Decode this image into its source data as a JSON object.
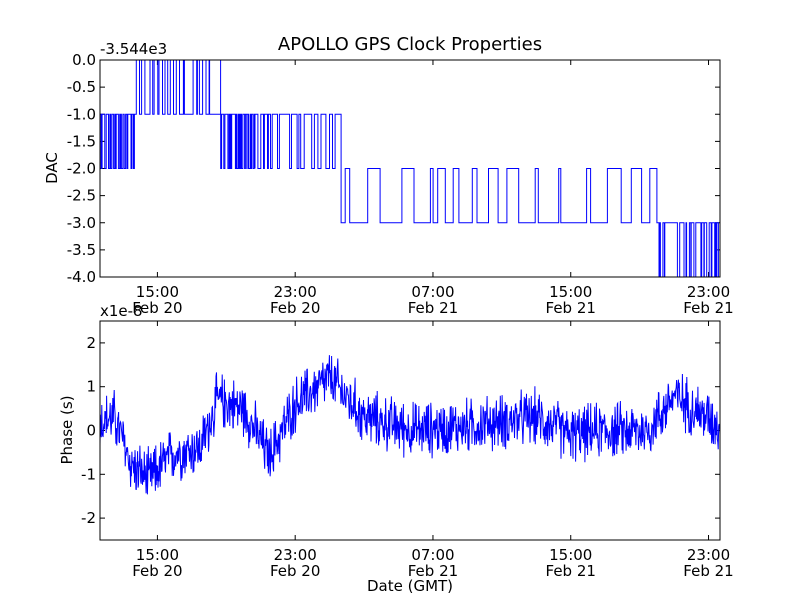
{
  "chart_data": [
    {
      "type": "line",
      "title": "APOLLO GPS Clock Properties",
      "offset_label": "-3.544e3",
      "ylabel": "DAC",
      "xlabel": "",
      "ylim": [
        -4.0,
        0.0
      ],
      "xlim": [
        "2009-02-20 11:40",
        "2009-02-21 23:40"
      ],
      "yticks": [
        "0.0",
        "-0.5",
        "-1.0",
        "-1.5",
        "-2.0",
        "-2.5",
        "-3.0",
        "-3.5",
        "-4.0"
      ],
      "xticks": [
        {
          "time": "15:00",
          "date": "Feb 20"
        },
        {
          "time": "23:00",
          "date": "Feb 20"
        },
        {
          "time": "07:00",
          "date": "Feb 21"
        },
        {
          "time": "15:00",
          "date": "Feb 21"
        },
        {
          "time": "23:00",
          "date": "Feb 21"
        }
      ],
      "color": "#0000ff",
      "segments": [
        {
          "start": "2009-02-20 11:40",
          "end": "2009-02-20 13:40",
          "base": -1,
          "alt": -2
        },
        {
          "start": "2009-02-20 13:40",
          "end": "2009-02-20 18:40",
          "base": -1,
          "alt": 0
        },
        {
          "start": "2009-02-20 18:40",
          "end": "2009-02-20 20:40",
          "base": -1,
          "alt": -2
        },
        {
          "start": "2009-02-20 20:40",
          "end": "2009-02-21 01:40",
          "base": -1,
          "alt": -2
        },
        {
          "start": "2009-02-21 01:40",
          "end": "2009-02-21 20:00",
          "base": -3,
          "alt": -2
        },
        {
          "start": "2009-02-21 20:00",
          "end": "2009-02-21 23:40",
          "base": -3,
          "alt": -4
        }
      ]
    },
    {
      "type": "line",
      "offset_label": "x1e-8",
      "ylabel": "Phase (s)",
      "xlabel": "Date (GMT)",
      "ylim": [
        -2.5,
        2.5
      ],
      "xlim": [
        "2009-02-20 11:40",
        "2009-02-21 23:40"
      ],
      "yticks": [
        "2",
        "1",
        "0",
        "-1",
        "-2"
      ],
      "xticks": [
        {
          "time": "15:00",
          "date": "Feb 20"
        },
        {
          "time": "23:00",
          "date": "Feb 20"
        },
        {
          "time": "07:00",
          "date": "Feb 21"
        },
        {
          "time": "15:00",
          "date": "Feb 21"
        },
        {
          "time": "23:00",
          "date": "Feb 21"
        }
      ],
      "color": "#0000ff",
      "trend": [
        {
          "t": "2009-02-20 11:40",
          "v": 0.2
        },
        {
          "t": "2009-02-20 12:30",
          "v": 0.3
        },
        {
          "t": "2009-02-20 13:30",
          "v": -0.8
        },
        {
          "t": "2009-02-20 14:30",
          "v": -1.1
        },
        {
          "t": "2009-02-20 16:00",
          "v": -0.5
        },
        {
          "t": "2009-02-20 17:30",
          "v": -0.4
        },
        {
          "t": "2009-02-20 18:30",
          "v": 0.7
        },
        {
          "t": "2009-02-20 20:00",
          "v": 0.5
        },
        {
          "t": "2009-02-20 21:30",
          "v": -0.6
        },
        {
          "t": "2009-02-20 23:00",
          "v": 0.6
        },
        {
          "t": "2009-02-21 01:00",
          "v": 1.2
        },
        {
          "t": "2009-02-21 03:00",
          "v": 0.3
        },
        {
          "t": "2009-02-21 06:00",
          "v": 0.0
        },
        {
          "t": "2009-02-21 09:00",
          "v": 0.1
        },
        {
          "t": "2009-02-21 11:00",
          "v": 0.2
        },
        {
          "t": "2009-02-21 13:00",
          "v": 0.3
        },
        {
          "t": "2009-02-21 15:00",
          "v": -0.1
        },
        {
          "t": "2009-02-21 17:00",
          "v": 0.0
        },
        {
          "t": "2009-02-21 19:30",
          "v": 0.0
        },
        {
          "t": "2009-02-21 21:00",
          "v": 0.8
        },
        {
          "t": "2009-02-21 23:40",
          "v": 0.1
        }
      ],
      "noise_amplitude": 0.55
    }
  ]
}
